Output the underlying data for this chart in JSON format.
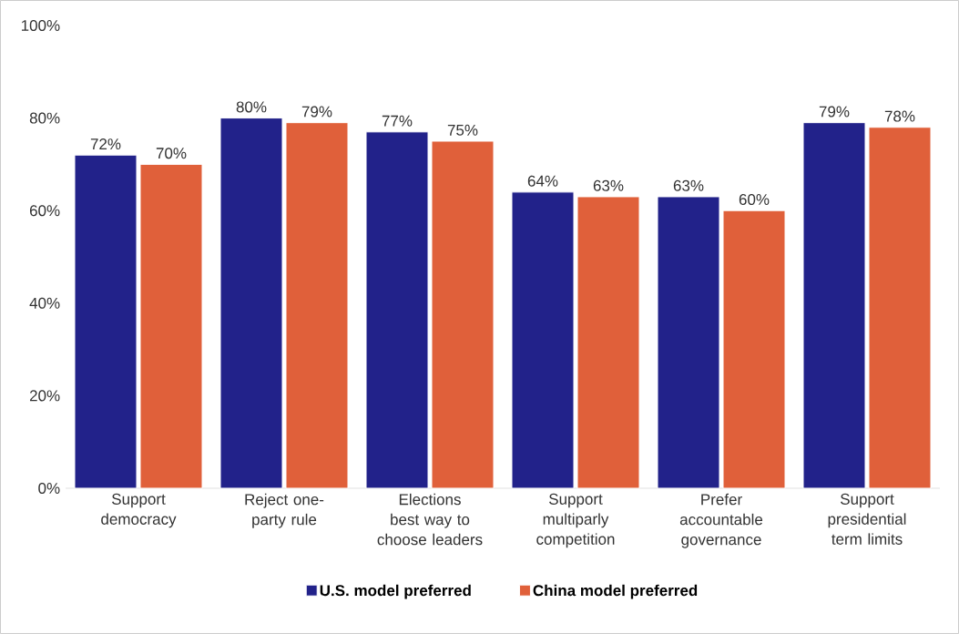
{
  "chart_data": {
    "type": "bar",
    "categories": [
      "Support democracy",
      "Reject one-party rule",
      "Elections best way to choose leaders",
      "Support multiparly competition",
      "Prefer accountable governance",
      "Support presidential term limits"
    ],
    "series": [
      {
        "name": "U.S. model preferred",
        "color": "#22228a",
        "values": [
          72,
          80,
          77,
          64,
          63,
          79
        ],
        "value_labels": [
          "72%",
          "80%",
          "77%",
          "64%",
          "63%",
          "79%"
        ]
      },
      {
        "name": "China model preferred",
        "color": "#e0603a",
        "values": [
          70,
          79,
          75,
          63,
          60,
          78
        ],
        "value_labels": [
          "70%",
          "79%",
          "75%",
          "63%",
          "60%",
          "78%"
        ]
      }
    ],
    "ylim": [
      0,
      100
    ],
    "yticks": [
      {
        "value": 0,
        "label": "0%"
      },
      {
        "value": 20,
        "label": "20%"
      },
      {
        "value": 40,
        "label": "40%"
      },
      {
        "value": 60,
        "label": "60%"
      },
      {
        "value": 80,
        "label": "80%"
      },
      {
        "value": 100,
        "label": "100%"
      }
    ],
    "grid": false,
    "legend": "bottom"
  }
}
